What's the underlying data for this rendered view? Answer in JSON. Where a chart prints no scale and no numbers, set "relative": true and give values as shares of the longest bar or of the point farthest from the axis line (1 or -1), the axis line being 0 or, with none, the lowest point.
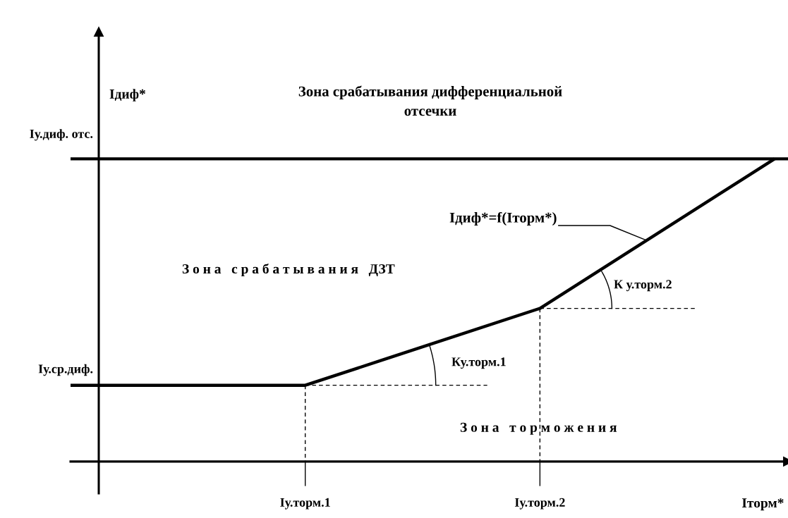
{
  "chart_data": {
    "type": "line",
    "relative": true,
    "xlabel": "Iторм*",
    "ylabel": "Iдиф*",
    "categories": [
      null,
      "Iу.торм.1",
      "Iу.торм.2",
      null
    ],
    "series": [
      {
        "color": "#000000",
        "line_style": "solid",
        "values": [
          0.252,
          0.252,
          0.506,
          1.0
        ]
      }
    ],
    "ref_lines": [
      {
        "axis": "y",
        "value": 1.0,
        "label": "Iу.диф. отс.",
        "color": "#000000",
        "line_style": "solid"
      }
    ],
    "annotations": [
      "Iу.ср.диф.",
      "Iдиф*=f(Iторм*)",
      "Ку.торм.1",
      "К у.торм.2",
      "Зона срабатывания дифференциальной\nотсечки",
      "З о н а   с р а б а т ы в а н и я   ДЗТ",
      "З о н а   т о р м о ж е н и я"
    ],
    "marker": "none",
    "legend": false
  }
}
